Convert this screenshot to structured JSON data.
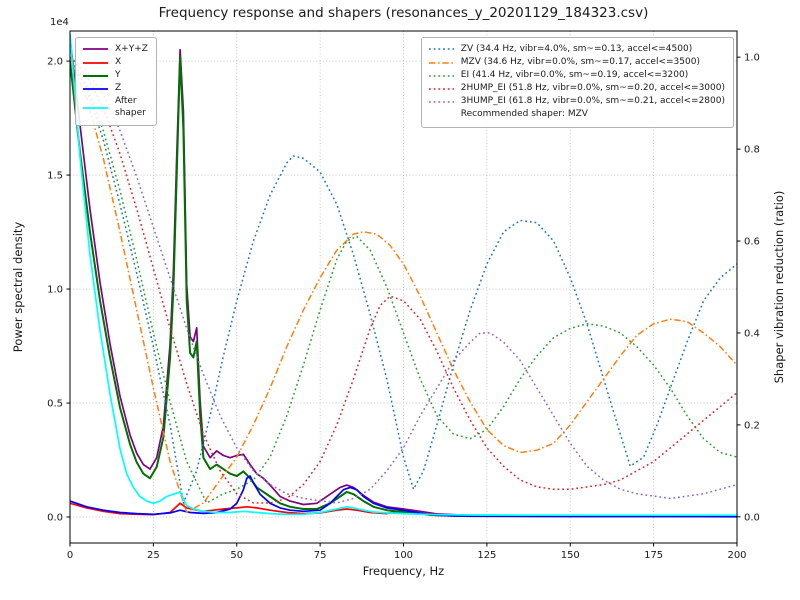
{
  "chart_data": {
    "type": "line",
    "title": "Frequency response and shapers (resonances_y_20201129_184323.csv)",
    "xlabel": "Frequency, Hz",
    "ylabel_left": "Power spectral density",
    "ylabel_right": "Shaper vibration reduction (ratio)",
    "grid": true,
    "legend_left_position": "upper left",
    "legend_right_position": "upper right",
    "xlim": [
      0,
      200
    ],
    "ylim_left": [
      -1140,
      21320
    ],
    "ylim_right": [
      -0.057,
      1.057
    ],
    "x_ticks": {
      "values": [
        0,
        25,
        50,
        75,
        100,
        125,
        150,
        175,
        200
      ],
      "labels": [
        "0",
        "25",
        "50",
        "75",
        "100",
        "125",
        "150",
        "175",
        "200"
      ]
    },
    "y_ticks_left": {
      "values": [
        0,
        5000,
        10000,
        15000,
        20000
      ],
      "labels": [
        "0.0",
        "0.5",
        "1.0",
        "1.5",
        "2.0"
      ],
      "offset_label": "1e4"
    },
    "y_ticks_right": {
      "values": [
        0,
        0.2,
        0.4,
        0.6,
        0.8,
        1.0
      ],
      "labels": [
        "0.0",
        "0.2",
        "0.4",
        "0.6",
        "0.8",
        "1.0"
      ]
    },
    "psd_series": [
      {
        "name": "psd-x-y-z",
        "label": "X+Y+Z",
        "color": "#800080",
        "style": "solid",
        "width": 1.7,
        "x": [
          0,
          3,
          6,
          9,
          12,
          15,
          18,
          20,
          22,
          24,
          26,
          28,
          30,
          31,
          32,
          33,
          34,
          35,
          36,
          37,
          38,
          39,
          40,
          42,
          44,
          46,
          48,
          50,
          52,
          54,
          56,
          58,
          60,
          63,
          66,
          70,
          74,
          78,
          81,
          83,
          85,
          88,
          91,
          95,
          100,
          105,
          110,
          120,
          140,
          160,
          180,
          200
        ],
        "y": [
          21000,
          17200,
          13500,
          10300,
          7600,
          5300,
          3600,
          2800,
          2300,
          2100,
          2600,
          4000,
          7600,
          10800,
          15800,
          20500,
          17800,
          10200,
          7900,
          7700,
          8300,
          5100,
          3100,
          2600,
          2900,
          2700,
          2600,
          2700,
          2750,
          2300,
          1900,
          1700,
          1400,
          900,
          700,
          550,
          600,
          1000,
          1300,
          1400,
          1300,
          950,
          650,
          450,
          350,
          250,
          130,
          70,
          50,
          40,
          40,
          35
        ]
      },
      {
        "name": "psd-x",
        "label": "X",
        "color": "#ff0000",
        "style": "solid",
        "width": 1.7,
        "x": [
          0,
          5,
          10,
          15,
          20,
          25,
          30,
          33,
          35,
          38,
          40,
          43,
          46,
          50,
          53,
          56,
          60,
          65,
          70,
          75,
          80,
          83,
          86,
          90,
          95,
          98,
          101,
          104,
          108,
          115,
          125,
          140,
          160,
          180,
          200
        ],
        "y": [
          600,
          400,
          250,
          150,
          120,
          100,
          200,
          600,
          400,
          300,
          250,
          300,
          350,
          400,
          450,
          400,
          300,
          200,
          150,
          180,
          300,
          350,
          300,
          200,
          150,
          250,
          300,
          180,
          80,
          50,
          40,
          30,
          25,
          25,
          20
        ]
      },
      {
        "name": "psd-y",
        "label": "Y",
        "color": "#007000",
        "style": "solid",
        "width": 2.0,
        "x": [
          0,
          3,
          6,
          9,
          12,
          15,
          18,
          20,
          22,
          24,
          26,
          28,
          30,
          31,
          32,
          33,
          34,
          35,
          36,
          37,
          38,
          39,
          40,
          42,
          44,
          46,
          48,
          50,
          52,
          54,
          56,
          58,
          60,
          63,
          66,
          70,
          74,
          78,
          81,
          83,
          85,
          88,
          91,
          95,
          100,
          105,
          110,
          120,
          140,
          160,
          180,
          200
        ],
        "y": [
          20000,
          16000,
          12500,
          9500,
          7000,
          4800,
          3200,
          2400,
          1900,
          1700,
          2200,
          3500,
          7000,
          10000,
          15000,
          20200,
          17000,
          9500,
          7200,
          7000,
          7700,
          4500,
          2600,
          2100,
          2300,
          2100,
          1900,
          1800,
          2000,
          1700,
          1300,
          1100,
          900,
          600,
          450,
          350,
          350,
          600,
          900,
          1100,
          1000,
          700,
          450,
          300,
          220,
          150,
          80,
          40,
          30,
          25,
          25,
          20
        ]
      },
      {
        "name": "psd-z",
        "label": "Z",
        "color": "#0000ff",
        "style": "solid",
        "width": 1.7,
        "x": [
          0,
          5,
          10,
          15,
          20,
          25,
          30,
          33,
          36,
          40,
          44,
          48,
          50,
          52,
          53,
          54,
          55,
          57,
          60,
          63,
          66,
          70,
          75,
          78,
          80,
          82,
          84,
          86,
          88,
          91,
          95,
          100,
          104,
          108,
          115,
          125,
          140,
          160,
          180,
          200
        ],
        "y": [
          700,
          450,
          300,
          200,
          150,
          120,
          180,
          300,
          200,
          160,
          200,
          350,
          600,
          1200,
          1700,
          1800,
          1500,
          1000,
          600,
          400,
          300,
          250,
          300,
          600,
          900,
          1200,
          1300,
          1200,
          900,
          600,
          400,
          300,
          200,
          100,
          50,
          40,
          30,
          25,
          25,
          20
        ]
      },
      {
        "name": "psd-after-shaper",
        "label": "After\nshaper",
        "color": "#00ffff",
        "style": "solid",
        "width": 1.7,
        "x": [
          0,
          3,
          6,
          9,
          12,
          15,
          17,
          19,
          21,
          23,
          25,
          27,
          29,
          31,
          33,
          34,
          35,
          37,
          40,
          44,
          48,
          52,
          56,
          60,
          65,
          70,
          75,
          80,
          83,
          85,
          88,
          91,
          95,
          100,
          110,
          120,
          140,
          160,
          180,
          200
        ],
        "y": [
          21200,
          15800,
          11500,
          8200,
          5400,
          3000,
          1900,
          1300,
          900,
          700,
          600,
          700,
          900,
          1000,
          1100,
          800,
          500,
          350,
          250,
          200,
          200,
          250,
          200,
          150,
          120,
          120,
          200,
          350,
          450,
          400,
          300,
          220,
          180,
          150,
          100,
          90,
          80,
          80,
          80,
          80
        ]
      }
    ],
    "shaper_series": [
      {
        "name": "shaper-zv",
        "label": "ZV (34.4 Hz, vibr=4.0%, sm~=0.13, accel<=4500)",
        "color": "#1f77b4",
        "style": "dotted",
        "width": 1.5,
        "x": [
          0,
          5,
          10,
          15,
          20,
          25,
          30,
          34,
          38,
          42,
          46,
          50,
          55,
          60,
          65,
          67,
          70,
          75,
          80,
          85,
          90,
          95,
          100,
          103,
          106,
          110,
          115,
          120,
          125,
          130,
          135,
          140,
          145,
          150,
          155,
          160,
          165,
          168,
          172,
          176,
          180,
          185,
          190,
          195,
          200
        ],
        "y": [
          1.0,
          0.93,
          0.82,
          0.68,
          0.53,
          0.37,
          0.2,
          0.03,
          0.1,
          0.22,
          0.35,
          0.47,
          0.6,
          0.7,
          0.77,
          0.785,
          0.78,
          0.75,
          0.68,
          0.57,
          0.44,
          0.3,
          0.13,
          0.06,
          0.1,
          0.2,
          0.33,
          0.45,
          0.55,
          0.62,
          0.645,
          0.64,
          0.6,
          0.52,
          0.42,
          0.3,
          0.18,
          0.11,
          0.13,
          0.2,
          0.28,
          0.38,
          0.47,
          0.52,
          0.55
        ]
      },
      {
        "name": "shaper-mzv",
        "label": "MZV (34.6 Hz, vibr=0.0%, sm~=0.17, accel<=3500)",
        "color": "#ff7f0e",
        "style": "dashdot",
        "width": 1.5,
        "x": [
          0,
          5,
          10,
          15,
          20,
          25,
          30,
          35,
          40,
          45,
          50,
          55,
          60,
          65,
          70,
          75,
          80,
          85,
          88,
          92,
          96,
          100,
          105,
          110,
          115,
          120,
          125,
          130,
          135,
          140,
          145,
          150,
          155,
          160,
          165,
          170,
          175,
          180,
          185,
          190,
          195,
          200
        ],
        "y": [
          1.0,
          0.91,
          0.78,
          0.62,
          0.45,
          0.28,
          0.12,
          0.01,
          0.03,
          0.08,
          0.13,
          0.2,
          0.28,
          0.37,
          0.45,
          0.52,
          0.58,
          0.615,
          0.62,
          0.615,
          0.59,
          0.55,
          0.48,
          0.4,
          0.32,
          0.25,
          0.19,
          0.155,
          0.14,
          0.145,
          0.16,
          0.2,
          0.25,
          0.3,
          0.35,
          0.395,
          0.42,
          0.43,
          0.425,
          0.4,
          0.37,
          0.33
        ]
      },
      {
        "name": "shaper-ei",
        "label": "EI (41.4 Hz, vibr=0.0%, sm~=0.19, accel<=3200)",
        "color": "#2ca02c",
        "style": "dotted",
        "width": 1.5,
        "x": [
          0,
          5,
          10,
          15,
          20,
          25,
          30,
          35,
          41,
          46,
          50,
          55,
          60,
          65,
          70,
          75,
          80,
          83,
          86,
          90,
          95,
          100,
          105,
          110,
          115,
          120,
          125,
          130,
          135,
          140,
          145,
          150,
          155,
          160,
          165,
          170,
          175,
          180,
          185,
          190,
          195,
          200
        ],
        "y": [
          1.0,
          0.94,
          0.84,
          0.71,
          0.56,
          0.4,
          0.25,
          0.12,
          0.03,
          0.05,
          0.06,
          0.08,
          0.13,
          0.22,
          0.33,
          0.45,
          0.56,
          0.6,
          0.61,
          0.58,
          0.5,
          0.4,
          0.3,
          0.22,
          0.18,
          0.17,
          0.19,
          0.24,
          0.3,
          0.35,
          0.39,
          0.41,
          0.42,
          0.415,
          0.4,
          0.37,
          0.33,
          0.28,
          0.22,
          0.17,
          0.14,
          0.13
        ]
      },
      {
        "name": "shaper-2hump-ei",
        "label": "2HUMP_EI (51.8 Hz, vibr=0.0%, sm~=0.20, accel<=3000)",
        "color": "#d62728",
        "style": "dotted",
        "width": 1.5,
        "x": [
          0,
          5,
          10,
          15,
          20,
          25,
          30,
          35,
          40,
          45,
          50,
          55,
          60,
          65,
          70,
          75,
          80,
          85,
          90,
          93,
          96,
          100,
          105,
          110,
          115,
          120,
          125,
          130,
          135,
          140,
          145,
          150,
          155,
          160,
          165,
          170,
          175,
          180,
          185,
          190,
          195,
          200
        ],
        "y": [
          1.0,
          0.96,
          0.89,
          0.79,
          0.67,
          0.54,
          0.41,
          0.29,
          0.18,
          0.1,
          0.05,
          0.03,
          0.03,
          0.04,
          0.07,
          0.12,
          0.2,
          0.3,
          0.41,
          0.46,
          0.48,
          0.47,
          0.43,
          0.36,
          0.28,
          0.21,
          0.15,
          0.11,
          0.08,
          0.065,
          0.06,
          0.06,
          0.065,
          0.07,
          0.08,
          0.1,
          0.12,
          0.15,
          0.18,
          0.21,
          0.24,
          0.27
        ]
      },
      {
        "name": "shaper-3hump-ei",
        "label": "3HUMP_EI (61.8 Hz, vibr=0.0%, sm~=0.21, accel<=2800)",
        "color": "#9467bd",
        "style": "dotted",
        "width": 1.5,
        "x": [
          0,
          5,
          10,
          15,
          20,
          25,
          30,
          35,
          40,
          45,
          50,
          55,
          60,
          65,
          70,
          75,
          80,
          85,
          90,
          95,
          100,
          105,
          110,
          115,
          120,
          123,
          126,
          130,
          135,
          140,
          145,
          150,
          155,
          160,
          165,
          170,
          175,
          180,
          185,
          190,
          195,
          200
        ],
        "y": [
          1.0,
          0.97,
          0.92,
          0.84,
          0.74,
          0.63,
          0.52,
          0.41,
          0.31,
          0.22,
          0.15,
          0.1,
          0.07,
          0.05,
          0.04,
          0.035,
          0.03,
          0.04,
          0.06,
          0.1,
          0.15,
          0.22,
          0.28,
          0.34,
          0.38,
          0.4,
          0.4,
          0.38,
          0.34,
          0.28,
          0.22,
          0.16,
          0.11,
          0.08,
          0.06,
          0.05,
          0.045,
          0.04,
          0.045,
          0.05,
          0.06,
          0.07
        ]
      }
    ],
    "recommended_note": "Recommended shaper: MZV"
  }
}
